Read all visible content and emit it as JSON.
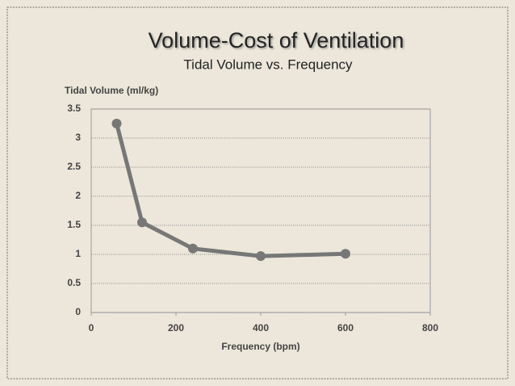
{
  "chart_data": {
    "type": "line",
    "title": "Volume-Cost of Ventilation",
    "subtitle": "Tidal Volume vs. Frequency",
    "y_label": "Tidal Volume (ml/kg)",
    "x_label": "Frequency (bpm)",
    "x": [
      60,
      120,
      240,
      400,
      600
    ],
    "values": [
      3.25,
      1.55,
      1.1,
      0.97,
      1.01
    ],
    "color": "#777777",
    "xlim": [
      0,
      800
    ],
    "xticks": [
      0,
      200,
      400,
      600,
      800
    ],
    "ylim": [
      0,
      3.5
    ],
    "yticks": [
      0,
      0.5,
      1,
      1.5,
      2,
      2.5,
      3,
      3.5
    ],
    "grid": true
  }
}
